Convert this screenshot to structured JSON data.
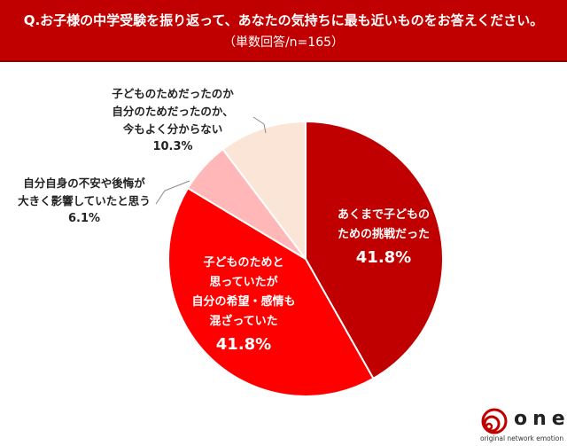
{
  "header": {
    "title": "Q.お子様の中学受験を振り返って、あなたの気持ちに最も近いものをお答えください。",
    "subtitle": "（単数回答/n=165）"
  },
  "chart_data": {
    "type": "pie",
    "start": "top",
    "direction": "clockwise",
    "slices": [
      {
        "label_lines": [
          "あくまで子どもの",
          "ための挑戦だった"
        ],
        "value": 41.8,
        "value_label": "41.8%",
        "color": "#c00000"
      },
      {
        "label_lines": [
          "子どものためと",
          "思っていたが",
          "自分の希望・感情も",
          "混ざっていた"
        ],
        "value": 41.8,
        "value_label": "41.8%",
        "color": "#ff0000"
      },
      {
        "label_lines": [
          "自分自身の不安や後悔が",
          "大きく影響していたと思う"
        ],
        "value": 6.1,
        "value_label": "6.1%",
        "color": "#ffb7b7"
      },
      {
        "label_lines": [
          "子どものためだったのか",
          "自分のためだったのか、",
          "今もよく分からない"
        ],
        "value": 10.3,
        "value_label": "10.3%",
        "color": "#fbe5d6"
      }
    ]
  },
  "logo": {
    "text": "one",
    "tagline": "original network emotion",
    "color": "#c00000"
  }
}
